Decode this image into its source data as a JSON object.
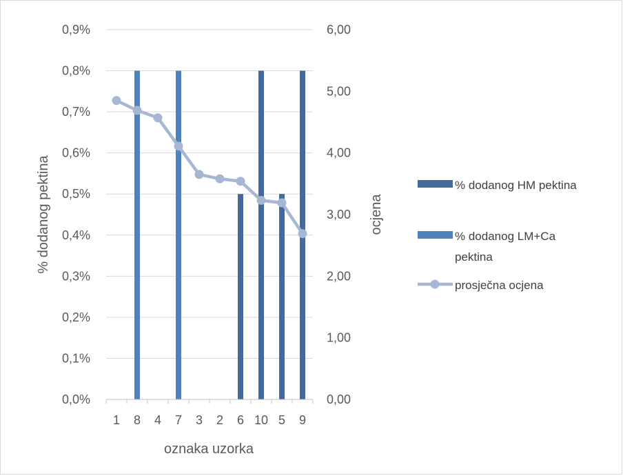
{
  "chart_data": {
    "type": "bar",
    "categories": [
      "1",
      "8",
      "4",
      "7",
      "3",
      "2",
      "6",
      "10",
      "5",
      "9"
    ],
    "series": [
      {
        "name": "% dodanog HM pektina",
        "kind": "bar",
        "axis": "left",
        "color": "#44699a",
        "values": [
          null,
          null,
          null,
          null,
          null,
          null,
          0.5,
          0.8,
          0.5,
          0.8
        ]
      },
      {
        "name": "% dodanog LM+Ca pektina",
        "kind": "bar",
        "axis": "left",
        "color": "#4f81bd",
        "values": [
          null,
          0.8,
          null,
          0.8,
          null,
          null,
          null,
          null,
          null,
          null
        ]
      },
      {
        "name": "prosječna ocjena",
        "kind": "line",
        "axis": "right",
        "color": "#a6b7d4",
        "values": [
          4.85,
          4.69,
          4.57,
          4.11,
          3.65,
          3.58,
          3.54,
          3.23,
          3.19,
          2.69
        ]
      }
    ],
    "xlabel": "oznaka uzorka",
    "ylabel": "% dodanog pektina",
    "y2label": "ocjena",
    "ylim": [
      0,
      0.9
    ],
    "y2lim": [
      0,
      6
    ],
    "yticks": [
      "0,0%",
      "0,1%",
      "0,2%",
      "0,3%",
      "0,4%",
      "0,5%",
      "0,6%",
      "0,7%",
      "0,8%",
      "0,9%"
    ],
    "y2ticks": [
      "0,00",
      "1,00",
      "2,00",
      "3,00",
      "4,00",
      "5,00",
      "6,00"
    ],
    "grid": true,
    "legend_position": "right",
    "legend": [
      {
        "lines": [
          "% dodanog HM pektina"
        ],
        "symbol": "bar",
        "color": "#44699a"
      },
      {
        "lines": [
          "% dodanog LM+Ca",
          "pektina"
        ],
        "symbol": "bar",
        "color": "#4f81bd"
      },
      {
        "lines": [
          "prosječna ocjena"
        ],
        "symbol": "line-marker",
        "color": "#a6b7d4"
      }
    ],
    "colors": {
      "grid": "#d9d9d9",
      "axis": "#bfbfbf",
      "text": "#595959"
    }
  }
}
